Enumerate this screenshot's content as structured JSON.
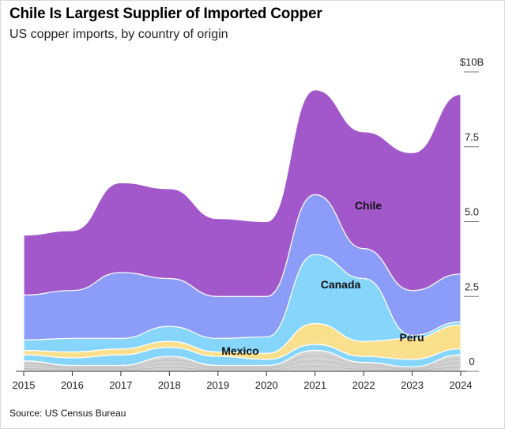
{
  "header": {
    "title": "Chile Is Largest Supplier of Imported Copper",
    "subtitle": "US copper imports, by country of origin"
  },
  "footer": {
    "source": "Source: US Census Bureau"
  },
  "colors": {
    "chile": "#a258cb",
    "canada": "#8b9cf9",
    "mexico": "#86d5fb",
    "peru": "#fae08c",
    "other": "#d3d3d3"
  },
  "chart_data": {
    "type": "area",
    "stacked": true,
    "unit": "$B",
    "x": [
      "2015",
      "2016",
      "2017",
      "2018",
      "2019",
      "2020",
      "2021",
      "2022",
      "2023",
      "2024"
    ],
    "x_tick_labels": [
      "2015",
      "2016",
      "2017",
      "2018",
      "2019",
      "2020",
      "2021",
      "2022",
      "2023",
      "2024"
    ],
    "y_ticks": [
      0,
      2.5,
      5.0,
      7.5,
      10
    ],
    "y_tick_labels": [
      "0",
      "2.5",
      "5.0",
      "7.5",
      "$10B"
    ],
    "ylim": [
      0,
      10
    ],
    "grid": false,
    "series": [
      {
        "name": "",
        "key": "other",
        "values": [
          0.35,
          0.2,
          0.2,
          0.5,
          0.2,
          0.2,
          0.7,
          0.3,
          0.15,
          0.55
        ]
      },
      {
        "name": "Mexico",
        "key": "mexico",
        "values": [
          0.2,
          0.25,
          0.35,
          0.3,
          0.3,
          0.2,
          0.2,
          0.2,
          0.25,
          0.2
        ]
      },
      {
        "name": "Peru",
        "key": "peru",
        "values": [
          0.15,
          0.2,
          0.2,
          0.2,
          0.15,
          0.2,
          0.7,
          0.5,
          0.7,
          0.8
        ]
      },
      {
        "name": "",
        "key": "mexico2",
        "values": [
          0.35,
          0.45,
          0.35,
          0.5,
          0.45,
          0.55,
          2.3,
          2.1,
          0.1,
          0.1
        ]
      },
      {
        "name": "Canada",
        "key": "canada",
        "values": [
          1.5,
          1.6,
          2.2,
          1.6,
          1.4,
          1.35,
          2.0,
          1.0,
          1.5,
          1.6
        ]
      },
      {
        "name": "Chile",
        "key": "chile",
        "values": [
          2.0,
          2.0,
          3.0,
          3.0,
          2.6,
          2.5,
          3.5,
          3.9,
          4.6,
          6.0
        ]
      }
    ],
    "annotations": [
      "Chile",
      "Canada",
      "Mexico",
      "Peru"
    ]
  }
}
